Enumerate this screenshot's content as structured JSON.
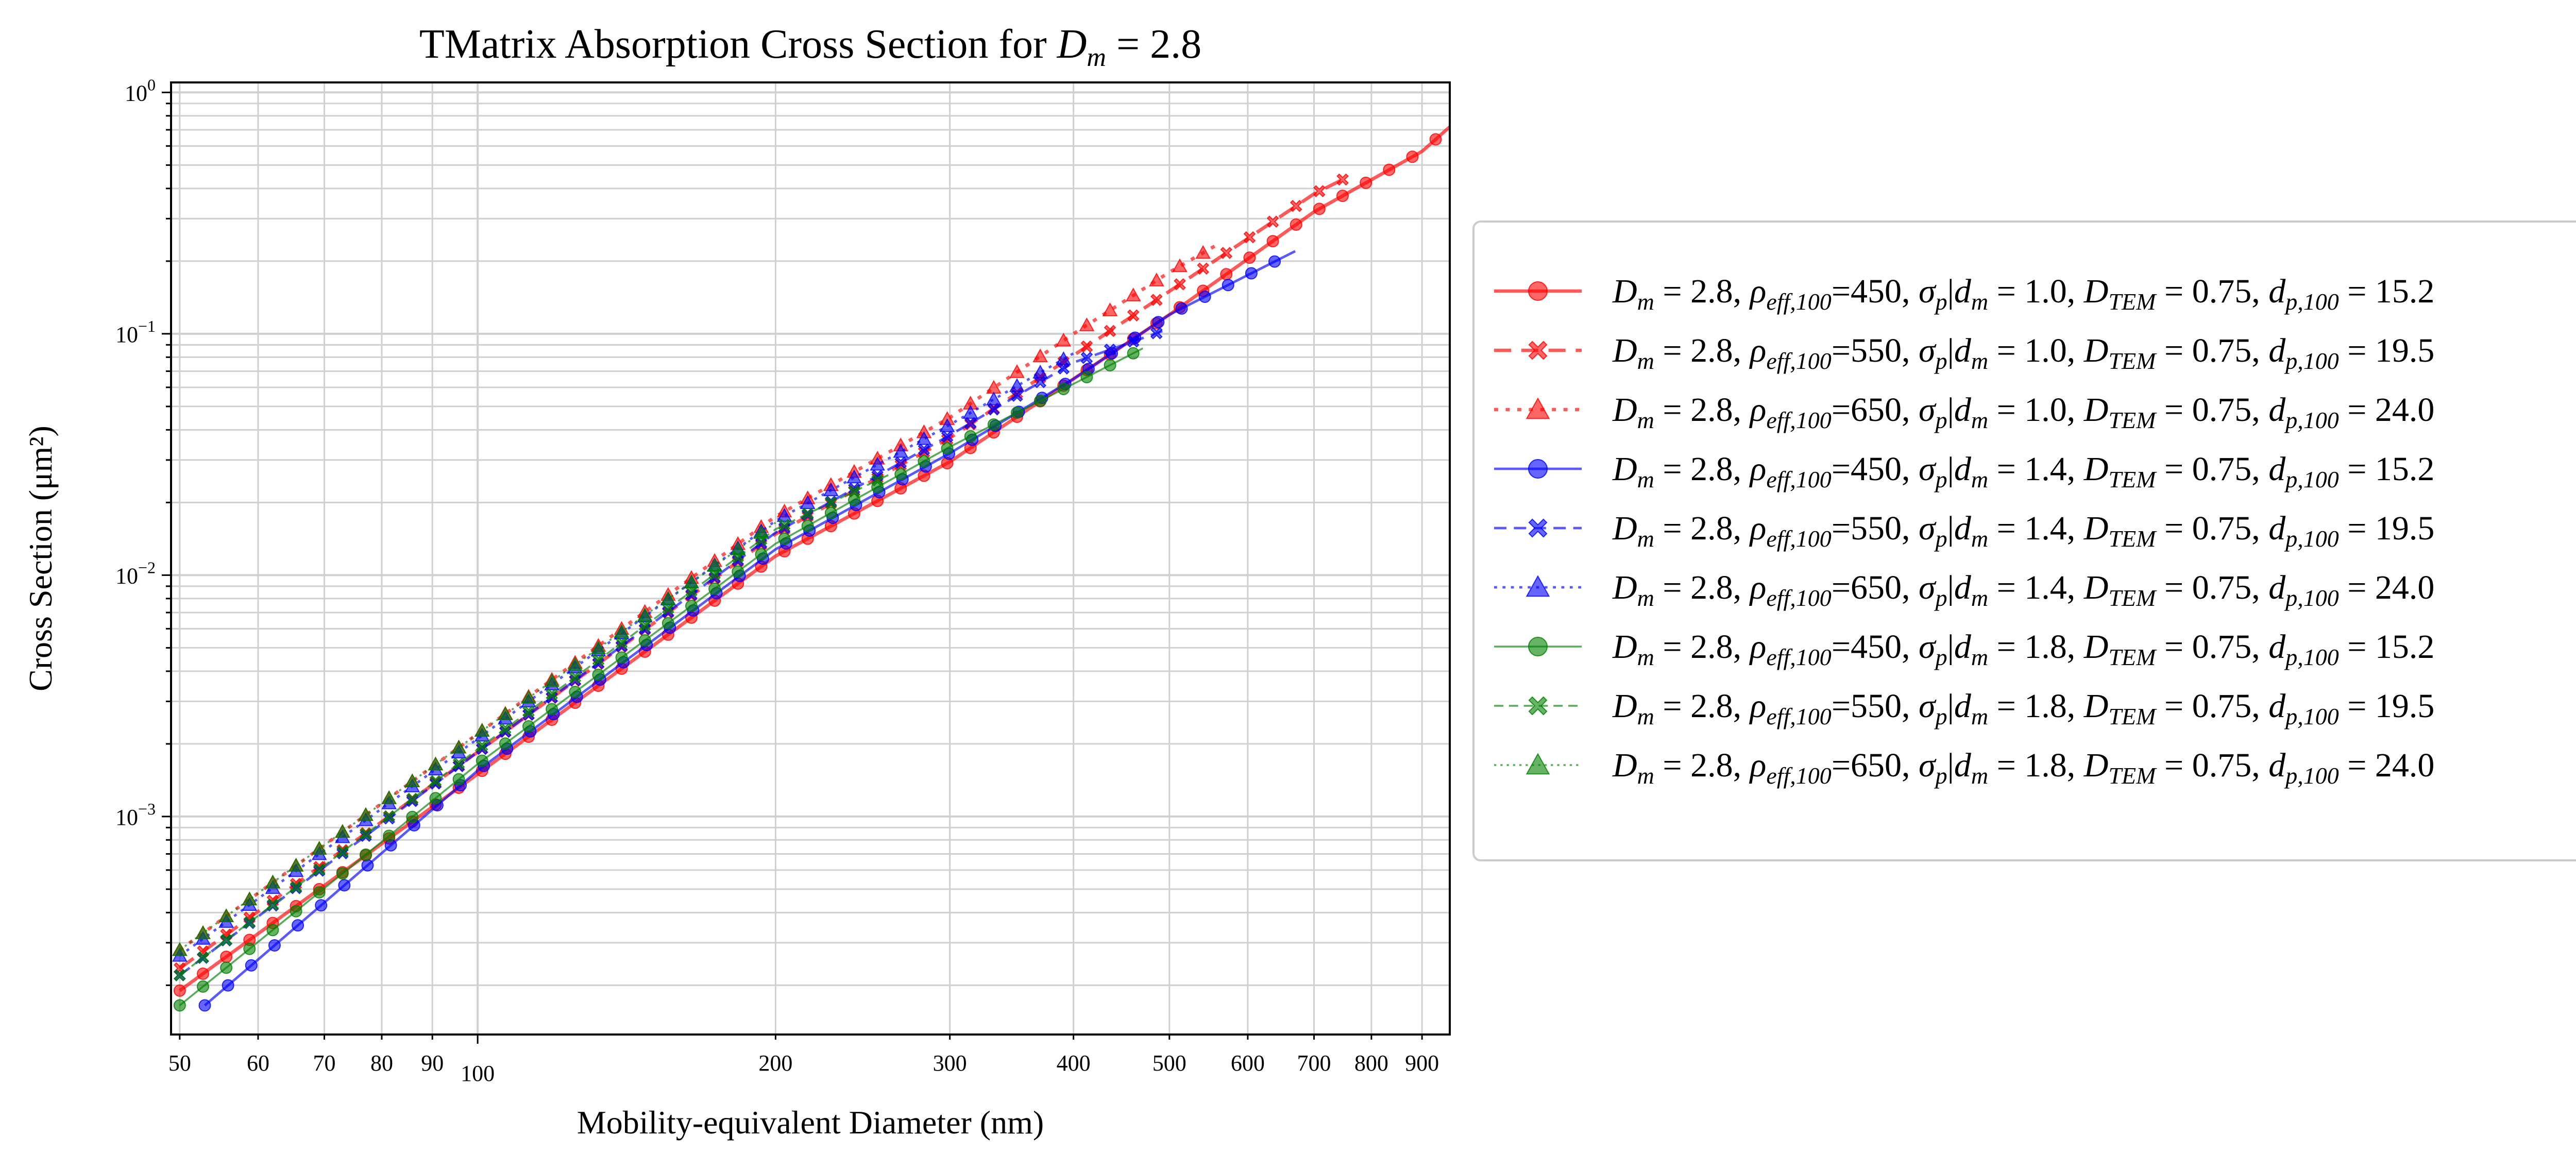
{
  "chart_data": {
    "type": "line",
    "title": {
      "prefix": "TMatrix Absorption Cross Section for ",
      "symbol": "D",
      "symbol_sub": "m",
      "suffix": " = 2.8"
    },
    "xlabel": "Mobility-equivalent Diameter (nm)",
    "ylabel": "Cross Section (μm²)",
    "x_scale": "log",
    "y_scale": "log",
    "xlim": [
      49,
      960
    ],
    "ylim": [
      0.000125,
      1.1
    ],
    "grid": true,
    "legend_position": "outside-right",
    "x_major_ticks": [
      {
        "value": 100,
        "label": "100"
      }
    ],
    "x_minor_ticks": [
      {
        "value": 50,
        "label": "50"
      },
      {
        "value": 60,
        "label": "60"
      },
      {
        "value": 70,
        "label": "70"
      },
      {
        "value": 80,
        "label": "80"
      },
      {
        "value": 90,
        "label": "90"
      },
      {
        "value": 200,
        "label": "200"
      },
      {
        "value": 300,
        "label": "300"
      },
      {
        "value": 400,
        "label": "400"
      },
      {
        "value": 500,
        "label": "500"
      },
      {
        "value": 600,
        "label": "600"
      },
      {
        "value": 700,
        "label": "700"
      },
      {
        "value": 800,
        "label": "800"
      },
      {
        "value": 900,
        "label": "900"
      }
    ],
    "y_major_ticks": [
      {
        "value": 0.001,
        "base": "10",
        "exp": "−3"
      },
      {
        "value": 0.01,
        "base": "10",
        "exp": "−2"
      },
      {
        "value": 0.1,
        "base": "10",
        "exp": "−1"
      },
      {
        "value": 1,
        "base": "10",
        "exp": "0"
      }
    ],
    "series": [
      {
        "name": "D_m = 2.8, ρ_eff,100=450, σ_p|d_m = 1.0, D_TEM = 0.75, d_p,100 = 15.2",
        "label": {
          "rho": "450",
          "sigma": "1.0",
          "dp": "15.2"
        },
        "color": "#ff0000",
        "marker": "circle",
        "dash": "solid",
        "linewidth": 2.2,
        "x": [
          50,
          100,
          200,
          300,
          500,
          700,
          900,
          960
        ],
        "y": [
          0.00019,
          0.0015,
          0.012,
          0.0295,
          0.12,
          0.32,
          0.57,
          0.72
        ]
      },
      {
        "name": "D_m = 2.8, ρ_eff,100=550, σ_p|d_m = 1.0, D_TEM = 0.75, d_p,100 = 19.5",
        "label": {
          "rho": "550",
          "sigma": "1.0",
          "dp": "19.5"
        },
        "color": "#ff0000",
        "marker": "x",
        "dash": "dashed",
        "linewidth": 2.2,
        "x": [
          50,
          100,
          200,
          300,
          500,
          700,
          760
        ],
        "y": [
          0.000235,
          0.00185,
          0.0148,
          0.037,
          0.15,
          0.38,
          0.45
        ]
      },
      {
        "name": "D_m = 2.8, ρ_eff,100=650, σ_p|d_m = 1.0, D_TEM = 0.75, d_p,100 = 24.0",
        "label": {
          "rho": "650",
          "sigma": "1.0",
          "dp": "24.0"
        },
        "color": "#ff0000",
        "marker": "triangle",
        "dash": "dotted",
        "linewidth": 2.2,
        "x": [
          50,
          100,
          200,
          300,
          400,
          500,
          560
        ],
        "y": [
          0.00028,
          0.0022,
          0.0175,
          0.045,
          0.1,
          0.18,
          0.235
        ]
      },
      {
        "name": "D_m = 2.8, ρ_eff,100=450, σ_p|d_m = 1.4, D_TEM = 0.75, d_p,100 = 15.2",
        "label": {
          "rho": "450",
          "sigma": "1.4",
          "dp": "15.2"
        },
        "color": "#0000ff",
        "marker": "circle",
        "dash": "solid",
        "linewidth": 1.6,
        "x": [
          53,
          100,
          200,
          300,
          400,
          500,
          670
        ],
        "y": [
          0.000165,
          0.00155,
          0.0128,
          0.032,
          0.065,
          0.12,
          0.22
        ]
      },
      {
        "name": "D_m = 2.8, ρ_eff,100=550, σ_p|d_m = 1.4, D_TEM = 0.75, d_p,100 = 19.5",
        "label": {
          "rho": "550",
          "sigma": "1.4",
          "dp": "19.5"
        },
        "color": "#0000ff",
        "marker": "x",
        "dash": "dashed",
        "linewidth": 1.6,
        "x": [
          50,
          100,
          200,
          300,
          400,
          500
        ],
        "y": [
          0.00022,
          0.00185,
          0.015,
          0.038,
          0.076,
          0.105
        ]
      },
      {
        "name": "D_m = 2.8, ρ_eff,100=650, σ_p|d_m = 1.4, D_TEM = 0.75, d_p,100 = 24.0",
        "label": {
          "rho": "650",
          "sigma": "1.4",
          "dp": "24.0"
        },
        "color": "#0000ff",
        "marker": "triangle",
        "dash": "dotted",
        "linewidth": 1.6,
        "x": [
          50,
          100,
          200,
          300,
          400
        ],
        "y": [
          0.000265,
          0.0021,
          0.0168,
          0.042,
          0.083
        ]
      },
      {
        "name": "D_m = 2.8, ρ_eff,100=450, σ_p|d_m = 1.8, D_TEM = 0.75, d_p,100 = 15.2",
        "label": {
          "rho": "450",
          "sigma": "1.8",
          "dp": "15.2"
        },
        "color": "#008000",
        "marker": "circle",
        "dash": "solid",
        "linewidth": 1.2,
        "x": [
          50,
          100,
          200,
          300,
          400,
          470
        ],
        "y": [
          0.000165,
          0.00165,
          0.0135,
          0.034,
          0.062,
          0.087
        ]
      },
      {
        "name": "D_m = 2.8, ρ_eff,100=550, σ_p|d_m = 1.8, D_TEM = 0.75, d_p,100 = 19.5",
        "label": {
          "rho": "550",
          "sigma": "1.8",
          "dp": "19.5"
        },
        "color": "#008000",
        "marker": "x",
        "dash": "dashed",
        "linewidth": 1.2,
        "x": [
          50,
          100,
          200,
          260
        ],
        "y": [
          0.00022,
          0.0019,
          0.0155,
          0.026
        ]
      },
      {
        "name": "D_m = 2.8, ρ_eff,100=650, σ_p|d_m = 1.8, D_TEM = 0.75, d_p,100 = 24.0",
        "label": {
          "rho": "650",
          "sigma": "1.8",
          "dp": "24.0"
        },
        "color": "#008000",
        "marker": "triangle",
        "dash": "dotted",
        "linewidth": 1.2,
        "x": [
          50,
          100,
          200
        ],
        "y": [
          0.00028,
          0.0022,
          0.0165
        ]
      }
    ]
  }
}
